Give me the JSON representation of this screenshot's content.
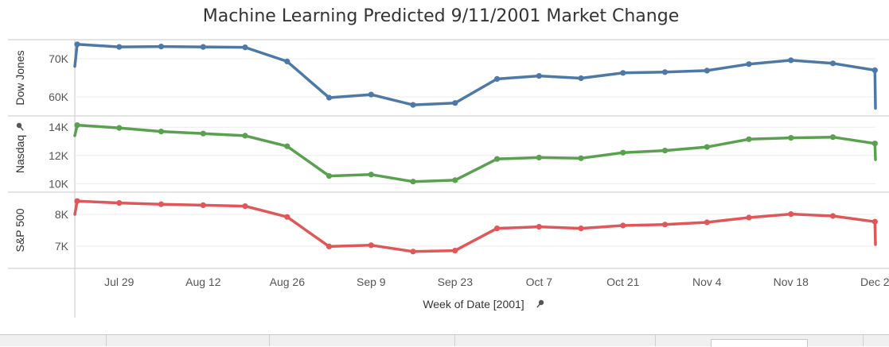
{
  "chart_data": {
    "type": "line",
    "title": "Machine Learning Predicted 9/11/2001 Market Change",
    "xlabel": "Week of Date [2001]",
    "x_ticks": [
      "Jul 29",
      "Aug 12",
      "Aug 26",
      "Sep 9",
      "Sep 23",
      "Oct 7",
      "Oct 21",
      "Nov 4",
      "Nov 18",
      "Dec 2"
    ],
    "x": [
      "Jul 22",
      "Jul 29",
      "Aug 5",
      "Aug 12",
      "Aug 19",
      "Aug 26",
      "Sep 2",
      "Sep 9",
      "Sep 16",
      "Sep 23",
      "Sep 30",
      "Oct 7",
      "Oct 14",
      "Oct 21",
      "Oct 28",
      "Nov 4",
      "Nov 11",
      "Nov 18",
      "Nov 25",
      "Dec 2"
    ],
    "grid": true,
    "series": [
      {
        "name": "Dow Jones",
        "color": "#4e79a7",
        "y_ticks": [
          "70K",
          "60K"
        ],
        "ylim": [
          55000,
          75000
        ],
        "start": 68000,
        "end": 57000,
        "values": [
          73800,
          73100,
          73200,
          73100,
          73000,
          69300,
          59800,
          60600,
          57900,
          58400,
          64700,
          65500,
          64900,
          66300,
          66500,
          66900,
          68600,
          69600,
          68800,
          67000
        ]
      },
      {
        "name": "Nasdaq",
        "color": "#59a14f",
        "y_ticks": [
          "14K",
          "12K",
          "10K"
        ],
        "ylim": [
          9400,
          14800
        ],
        "start": 13400,
        "end": 11700,
        "values": [
          14150,
          13950,
          13700,
          13550,
          13400,
          12650,
          10550,
          10650,
          10150,
          10250,
          11750,
          11850,
          11800,
          12200,
          12350,
          12600,
          13150,
          13250,
          13300,
          12850
        ]
      },
      {
        "name": "S&P 500",
        "color": "#e15759",
        "y_ticks": [
          "8K",
          "7K"
        ],
        "ylim": [
          6300,
          8700
        ],
        "start": 8000,
        "end": 7050,
        "values": [
          8420,
          8360,
          8320,
          8290,
          8260,
          7920,
          6990,
          7030,
          6830,
          6860,
          7560,
          7610,
          7560,
          7650,
          7680,
          7750,
          7900,
          8010,
          7950,
          7770
        ]
      }
    ]
  }
}
